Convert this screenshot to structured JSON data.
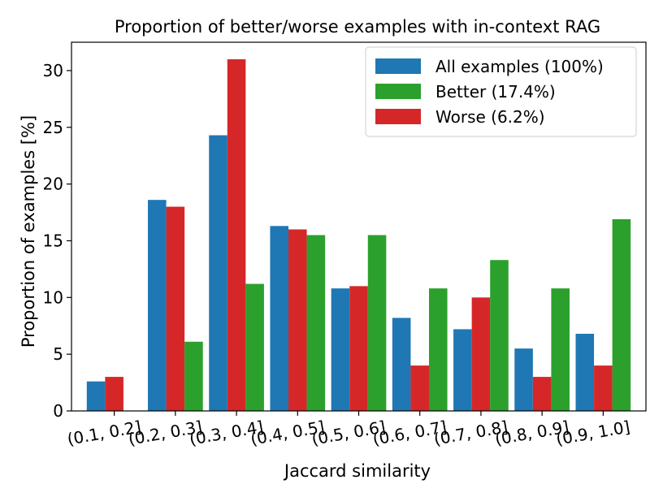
{
  "chart_data": {
    "type": "bar",
    "title": "Proportion of better/worse examples with in-context RAG",
    "xlabel": "Jaccard similarity",
    "ylabel": "Proportion of examples [%]",
    "ylim": [
      0,
      32.5
    ],
    "yticks": [
      0,
      5,
      10,
      15,
      20,
      25,
      30
    ],
    "grid": false,
    "legend_position": "top-right",
    "categories": [
      "(0.1, 0.2]",
      "(0.2, 0.3]",
      "(0.3, 0.4]",
      "(0.4, 0.5]",
      "(0.5, 0.6]",
      "(0.6, 0.7]",
      "(0.7, 0.8]",
      "(0.8, 0.9]",
      "(0.9, 1.0]"
    ],
    "series": [
      {
        "name": "All examples (100%)",
        "color": "#1f77b4",
        "values": [
          2.6,
          18.6,
          24.3,
          16.3,
          10.8,
          8.2,
          7.2,
          5.5,
          6.8
        ]
      },
      {
        "name": "Better (17.4%)",
        "color": "#2ca02c",
        "values": [
          0,
          6.1,
          11.2,
          15.5,
          15.5,
          10.8,
          13.3,
          10.8,
          16.9
        ]
      },
      {
        "name": "Worse (6.2%)",
        "color": "#d62728",
        "values": [
          3.0,
          18.0,
          31.0,
          16.0,
          11.0,
          4.0,
          10.0,
          3.0,
          4.0
        ]
      }
    ]
  }
}
